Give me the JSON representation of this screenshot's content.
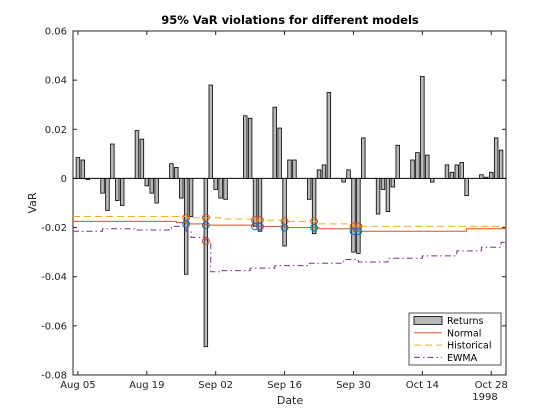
{
  "chart_data": {
    "type": "bar",
    "title": "95% VaR violations for different models",
    "xlabel": "Date",
    "ylabel": "VaR",
    "year_label": "1998",
    "x_start": "1998-08-04",
    "x_end": "1998-10-31",
    "ylim": [
      -0.08,
      0.06
    ],
    "y_ticks": [
      -0.08,
      -0.06,
      -0.04,
      -0.02,
      0,
      0.02,
      0.04,
      0.06
    ],
    "y_tick_labels": [
      "-0.08",
      "-0.06",
      "-0.04",
      "-0.02",
      "0",
      "0.02",
      "0.04",
      "0.06"
    ],
    "x_ticks": [
      "1998-08-05",
      "1998-08-19",
      "1998-09-02",
      "1998-09-16",
      "1998-09-30",
      "1998-10-14",
      "1998-10-28"
    ],
    "x_tick_labels": [
      "Aug 05",
      "Aug 19",
      "Sep 02",
      "Sep 16",
      "Sep 30",
      "Oct 14",
      "Oct 28"
    ],
    "legend": {
      "location": "bottom-right",
      "entries": [
        "Returns",
        "Normal",
        "Historical",
        "EWMA"
      ]
    },
    "colors": {
      "returns_fill": "#b8b8b8",
      "returns_edge": "#000000",
      "normal": "#d95319",
      "historical": "#edb120",
      "ewma": "#7e2f8e",
      "marker_normal": "#0072bd",
      "marker_hist": "#d95319"
    },
    "series": [
      {
        "name": "Returns",
        "kind": "bar",
        "dates": [
          "1998-08-05",
          "1998-08-06",
          "1998-08-07",
          "1998-08-10",
          "1998-08-11",
          "1998-08-12",
          "1998-08-13",
          "1998-08-14",
          "1998-08-17",
          "1998-08-18",
          "1998-08-19",
          "1998-08-20",
          "1998-08-21",
          "1998-08-24",
          "1998-08-25",
          "1998-08-26",
          "1998-08-27",
          "1998-08-28",
          "1998-08-31",
          "1998-09-01",
          "1998-09-02",
          "1998-09-03",
          "1998-09-04",
          "1998-09-08",
          "1998-09-09",
          "1998-09-10",
          "1998-09-11",
          "1998-09-14",
          "1998-09-15",
          "1998-09-16",
          "1998-09-17",
          "1998-09-18",
          "1998-09-21",
          "1998-09-22",
          "1998-09-23",
          "1998-09-24",
          "1998-09-25",
          "1998-09-28",
          "1998-09-29",
          "1998-09-30",
          "1998-10-01",
          "1998-10-02",
          "1998-10-05",
          "1998-10-06",
          "1998-10-07",
          "1998-10-08",
          "1998-10-09",
          "1998-10-12",
          "1998-10-13",
          "1998-10-14",
          "1998-10-15",
          "1998-10-16",
          "1998-10-19",
          "1998-10-20",
          "1998-10-21",
          "1998-10-22",
          "1998-10-23",
          "1998-10-26",
          "1998-10-27",
          "1998-10-28",
          "1998-10-29",
          "1998-10-30"
        ],
        "values": [
          0.0085,
          0.0075,
          -0.0005,
          -0.006,
          -0.013,
          0.014,
          -0.009,
          -0.011,
          0.0195,
          0.016,
          -0.003,
          -0.006,
          -0.01,
          0.006,
          0.0045,
          -0.008,
          -0.039,
          -0.0155,
          -0.0685,
          0.038,
          -0.0045,
          -0.008,
          -0.0085,
          0.0255,
          0.0245,
          -0.0195,
          -0.0215,
          0.029,
          0.0205,
          -0.0275,
          0.0075,
          0.0075,
          -0.0085,
          -0.0225,
          0.0035,
          0.0055,
          0.035,
          -0.0015,
          0.0035,
          -0.03,
          -0.0305,
          0.0165,
          -0.0145,
          -0.0045,
          -0.0135,
          -0.0035,
          0.0135,
          0.0075,
          0.0105,
          0.0415,
          0.0095,
          -0.0015,
          0.0055,
          0.0025,
          0.0055,
          0.0065,
          -0.007,
          0.0015,
          0.0005,
          0.0025,
          0.0165,
          0.0115
        ]
      },
      {
        "name": "Normal",
        "kind": "line",
        "dates": [
          "1998-08-04",
          "1998-08-25",
          "1998-08-27",
          "1998-08-31",
          "1998-09-10",
          "1998-09-16",
          "1998-09-23",
          "1998-09-30",
          "1998-10-14",
          "1998-10-23",
          "1998-10-31"
        ],
        "values": [
          -0.0175,
          -0.018,
          -0.0185,
          -0.019,
          -0.0195,
          -0.02,
          -0.0205,
          -0.0215,
          -0.0215,
          -0.0205,
          -0.02
        ]
      },
      {
        "name": "Historical",
        "kind": "line",
        "dates": [
          "1998-08-04",
          "1998-08-20",
          "1998-08-27",
          "1998-08-28",
          "1998-09-03",
          "1998-09-10",
          "1998-09-16",
          "1998-09-23",
          "1998-09-30",
          "1998-10-14",
          "1998-10-31"
        ],
        "values": [
          -0.0155,
          -0.0155,
          -0.016,
          -0.016,
          -0.0165,
          -0.017,
          -0.0175,
          -0.0185,
          -0.0195,
          -0.0195,
          -0.0195
        ]
      },
      {
        "name": "EWMA",
        "kind": "line",
        "dates": [
          "1998-08-04",
          "1998-08-10",
          "1998-08-17",
          "1998-08-24",
          "1998-08-27",
          "1998-08-28",
          "1998-08-31",
          "1998-09-01",
          "1998-09-03",
          "1998-09-09",
          "1998-09-14",
          "1998-09-21",
          "1998-09-28",
          "1998-10-01",
          "1998-10-07",
          "1998-10-14",
          "1998-10-21",
          "1998-10-26",
          "1998-10-30"
        ],
        "values": [
          -0.0215,
          -0.0205,
          -0.021,
          -0.0195,
          -0.0215,
          -0.024,
          -0.0255,
          -0.038,
          -0.0375,
          -0.0365,
          -0.0355,
          -0.0345,
          -0.033,
          -0.034,
          -0.0325,
          -0.0315,
          -0.0295,
          -0.028,
          -0.026
        ]
      }
    ],
    "violations": {
      "dates": [
        "1998-08-27",
        "1998-08-31",
        "1998-09-10",
        "1998-09-11",
        "1998-09-16",
        "1998-09-22",
        "1998-09-30",
        "1998-10-01"
      ]
    }
  }
}
